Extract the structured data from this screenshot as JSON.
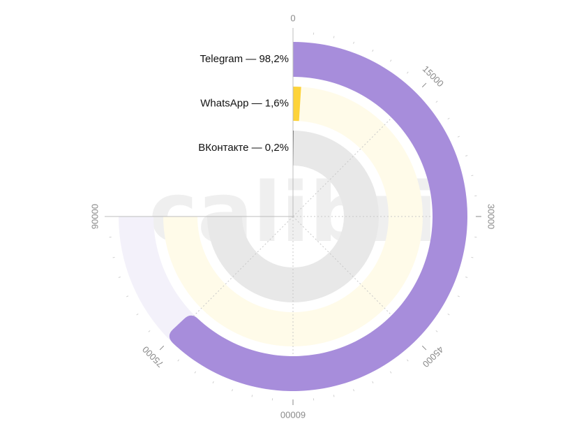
{
  "chart_data": {
    "type": "radial-bar",
    "scale_max": 90000,
    "axis_ticks": [
      0,
      15000,
      30000,
      45000,
      60000,
      75000,
      90000
    ],
    "watermark": "calibri",
    "series": [
      {
        "name": "Telegram",
        "percent_label": "98,2%",
        "value": 75600,
        "color": "#a78ddb",
        "track_color": "#f3f1fa"
      },
      {
        "name": "WhatsApp",
        "percent_label": "1,6%",
        "value": 1200,
        "color": "#fdd33a",
        "track_color": "#fffbe9"
      },
      {
        "name": "ВКонтакте",
        "percent_label": "0,2%",
        "value": 150,
        "color": "#333333",
        "track_color": "#e8e8e8"
      }
    ]
  }
}
